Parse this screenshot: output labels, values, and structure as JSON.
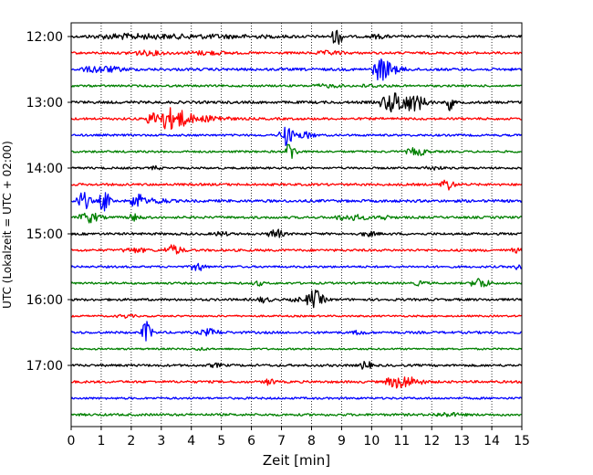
{
  "chart_data": {
    "type": "line",
    "title": "",
    "xlabel": "Zeit  [min]",
    "ylabel": "UTC (Lokalzeit = UTC + 02:00)",
    "xlim": [
      0,
      15
    ],
    "xticks": [
      "0",
      "1",
      "2",
      "3",
      "4",
      "5",
      "6",
      "7",
      "8",
      "9",
      "10",
      "11",
      "12",
      "13",
      "14",
      "15"
    ],
    "ytick_labels": [
      "12:00",
      "13:00",
      "14:00",
      "15:00",
      "16:00",
      "17:00"
    ],
    "ytick_hours": [
      12,
      13,
      14,
      15,
      16,
      17
    ],
    "grid": "vertical dotted",
    "line_interval_min": 15,
    "colors": [
      "#000000",
      "#ff0000",
      "#0000ff",
      "#008000"
    ],
    "traces": [
      {
        "hour": 12.0,
        "color": "#000000",
        "noise": 0.8,
        "events": [
          [
            1.6,
            2.0,
            0.5
          ],
          [
            4.0,
            5.0,
            0.5
          ],
          [
            8.85,
            0.3,
            3.0
          ],
          [
            10.2,
            0.6,
            0.5
          ]
        ]
      },
      {
        "hour": 12.25,
        "color": "#ff0000",
        "noise": 0.8,
        "events": [
          [
            2.5,
            1.2,
            0.6
          ],
          [
            4.5,
            1.2,
            0.5
          ],
          [
            8.6,
            0.8,
            0.5
          ]
        ]
      },
      {
        "hour": 12.5,
        "color": "#0000ff",
        "noise": 0.9,
        "events": [
          [
            1.0,
            1.2,
            0.9
          ],
          [
            10.3,
            0.5,
            3.0
          ],
          [
            10.6,
            0.8,
            1.2
          ]
        ]
      },
      {
        "hour": 12.75,
        "color": "#008000",
        "noise": 0.7,
        "events": [
          [
            8.5,
            1.0,
            0.4
          ],
          [
            10.0,
            0.8,
            0.4
          ]
        ]
      },
      {
        "hour": 13.0,
        "color": "#000000",
        "noise": 0.9,
        "events": [
          [
            10.8,
            0.9,
            3.3
          ],
          [
            11.5,
            0.6,
            2.0
          ],
          [
            12.6,
            0.2,
            2.5
          ]
        ]
      },
      {
        "hour": 13.25,
        "color": "#ff0000",
        "noise": 0.8,
        "events": [
          [
            3.3,
            1.3,
            3.5
          ],
          [
            4.8,
            0.8,
            0.8
          ]
        ]
      },
      {
        "hour": 13.5,
        "color": "#0000ff",
        "noise": 0.7,
        "events": [
          [
            7.1,
            0.3,
            3.2
          ],
          [
            7.4,
            0.6,
            1.2
          ],
          [
            7.9,
            0.4,
            0.8
          ]
        ]
      },
      {
        "hour": 13.75,
        "color": "#008000",
        "noise": 0.7,
        "events": [
          [
            7.3,
            0.3,
            3.3
          ],
          [
            11.5,
            0.6,
            1.2
          ]
        ]
      },
      {
        "hour": 14.0,
        "color": "#000000",
        "noise": 0.7,
        "events": [
          [
            2.8,
            0.3,
            0.5
          ],
          [
            12.0,
            0.6,
            0.5
          ]
        ]
      },
      {
        "hour": 14.25,
        "color": "#ff0000",
        "noise": 0.8,
        "events": [
          [
            12.5,
            0.4,
            1.8
          ]
        ]
      },
      {
        "hour": 14.5,
        "color": "#0000ff",
        "noise": 0.9,
        "events": [
          [
            0.4,
            0.4,
            2.8
          ],
          [
            1.1,
            0.3,
            3.5
          ],
          [
            2.2,
            0.4,
            2.6
          ],
          [
            2.9,
            0.6,
            0.8
          ]
        ]
      },
      {
        "hour": 14.75,
        "color": "#008000",
        "noise": 0.8,
        "events": [
          [
            0.6,
            0.6,
            1.6
          ],
          [
            2.1,
            0.4,
            1.0
          ],
          [
            9.3,
            1.0,
            0.8
          ],
          [
            10.4,
            0.4,
            0.6
          ]
        ]
      },
      {
        "hour": 15.0,
        "color": "#000000",
        "noise": 0.8,
        "events": [
          [
            5.0,
            0.4,
            0.6
          ],
          [
            6.8,
            0.4,
            1.6
          ],
          [
            9.9,
            0.5,
            0.6
          ]
        ]
      },
      {
        "hour": 15.25,
        "color": "#ff0000",
        "noise": 0.8,
        "events": [
          [
            2.1,
            0.8,
            0.6
          ],
          [
            3.4,
            0.5,
            1.6
          ],
          [
            14.8,
            0.3,
            0.6
          ]
        ]
      },
      {
        "hour": 15.5,
        "color": "#0000ff",
        "noise": 0.7,
        "events": [
          [
            4.2,
            0.4,
            1.4
          ],
          [
            14.9,
            0.2,
            1.2
          ]
        ]
      },
      {
        "hour": 15.75,
        "color": "#008000",
        "noise": 0.7,
        "events": [
          [
            6.2,
            0.3,
            0.8
          ],
          [
            11.6,
            0.4,
            0.6
          ],
          [
            13.6,
            0.5,
            1.8
          ]
        ]
      },
      {
        "hour": 16.0,
        "color": "#000000",
        "noise": 0.8,
        "events": [
          [
            6.4,
            0.4,
            0.8
          ],
          [
            7.5,
            0.3,
            0.6
          ],
          [
            8.1,
            0.5,
            3.0
          ]
        ]
      },
      {
        "hour": 16.25,
        "color": "#ff0000",
        "noise": 0.6,
        "events": [
          [
            1.8,
            0.5,
            0.5
          ]
        ]
      },
      {
        "hour": 16.5,
        "color": "#0000ff",
        "noise": 0.8,
        "events": [
          [
            2.5,
            0.3,
            3.5
          ],
          [
            4.6,
            0.6,
            1.0
          ],
          [
            9.6,
            0.4,
            0.6
          ]
        ]
      },
      {
        "hour": 16.75,
        "color": "#008000",
        "noise": 0.6,
        "events": [
          [
            4.3,
            0.3,
            0.5
          ]
        ]
      },
      {
        "hour": 17.0,
        "color": "#000000",
        "noise": 0.8,
        "events": [
          [
            9.8,
            0.3,
            1.6
          ],
          [
            4.8,
            0.4,
            0.5
          ]
        ]
      },
      {
        "hour": 17.25,
        "color": "#ff0000",
        "noise": 0.8,
        "events": [
          [
            6.6,
            0.3,
            1.0
          ],
          [
            11.0,
            1.0,
            2.0
          ]
        ]
      },
      {
        "hour": 17.5,
        "color": "#0000ff",
        "noise": 0.7,
        "events": []
      },
      {
        "hour": 17.75,
        "color": "#008000",
        "noise": 0.8,
        "events": [
          [
            12.5,
            0.8,
            0.5
          ]
        ]
      }
    ]
  }
}
